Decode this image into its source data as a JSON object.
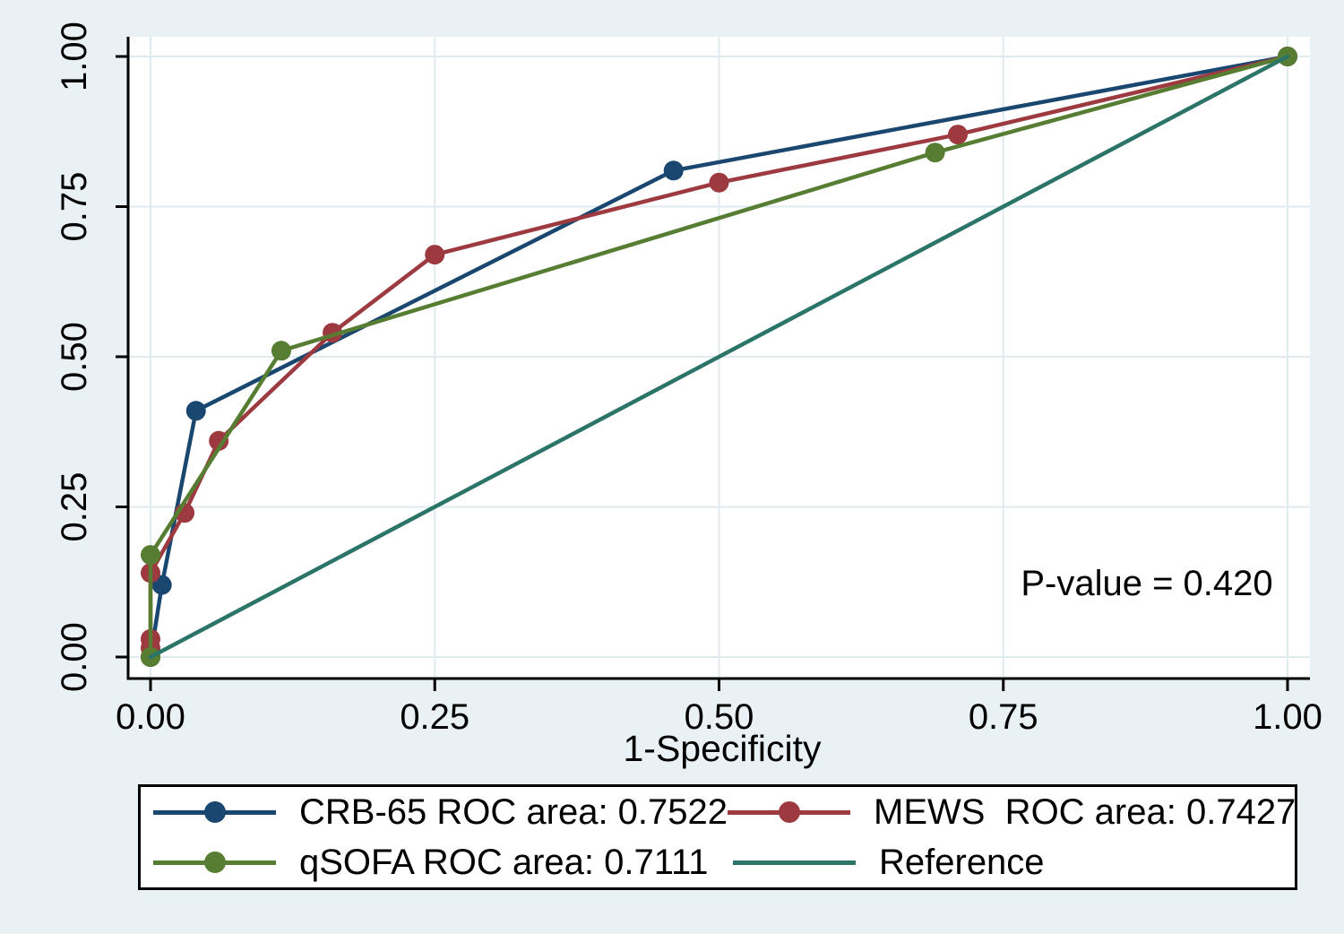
{
  "figure": {
    "background": "#e9f1f5",
    "plot_background": "#ffffff",
    "grid_color": "#e0ebf0",
    "axis_color": "#000000",
    "text_color": "#000000"
  },
  "chart_data": {
    "type": "line",
    "title": "",
    "xlabel": "1-Specificity",
    "ylabel": "",
    "xlim": [
      0,
      1
    ],
    "ylim": [
      0,
      1
    ],
    "grid": true,
    "legend_position": "bottom",
    "xtick_values": [
      0,
      0.25,
      0.5,
      0.75,
      1
    ],
    "xtick_labels": [
      "0.00",
      "0.25",
      "0.50",
      "0.75",
      "1.00"
    ],
    "ytick_values": [
      0,
      0.25,
      0.5,
      0.75,
      1
    ],
    "ytick_labels": [
      "0.00",
      "0.25",
      "0.50",
      "0.75",
      "1.00"
    ],
    "annotation": {
      "text": "P-value = 0.420",
      "x": 0.876,
      "y": 0.12
    },
    "series": [
      {
        "name": "CRB-65",
        "legend_label": "CRB-65 ROC area: 0.7522",
        "roc_area": "0.7522",
        "color": "#1a476f",
        "markers": true,
        "points": [
          [
            0,
            0
          ],
          [
            0.01,
            0.12
          ],
          [
            0.04,
            0.41
          ],
          [
            0.46,
            0.81
          ],
          [
            1,
            1
          ]
        ]
      },
      {
        "name": "MEWS",
        "legend_label": "MEWS  ROC area: 0.7427",
        "roc_area": "0.7427",
        "color": "#9d3a40",
        "markers": true,
        "points": [
          [
            0,
            0
          ],
          [
            0,
            0.015
          ],
          [
            0,
            0.03
          ],
          [
            0,
            0.14
          ],
          [
            0.03,
            0.24
          ],
          [
            0.06,
            0.36
          ],
          [
            0.16,
            0.54
          ],
          [
            0.25,
            0.67
          ],
          [
            0.5,
            0.79
          ],
          [
            0.71,
            0.87
          ],
          [
            1,
            1
          ]
        ]
      },
      {
        "name": "qSOFA",
        "legend_label": "qSOFA ROC area: 0.7111",
        "roc_area": "0.7111",
        "color": "#567d32",
        "markers": true,
        "points": [
          [
            0,
            0
          ],
          [
            0,
            0.17
          ],
          [
            0.115,
            0.51
          ],
          [
            0.69,
            0.84
          ],
          [
            1,
            1
          ]
        ]
      },
      {
        "name": "Reference",
        "legend_label": "Reference",
        "color": "#2b7468",
        "markers": false,
        "points": [
          [
            0,
            0
          ],
          [
            1,
            1
          ]
        ]
      }
    ]
  }
}
